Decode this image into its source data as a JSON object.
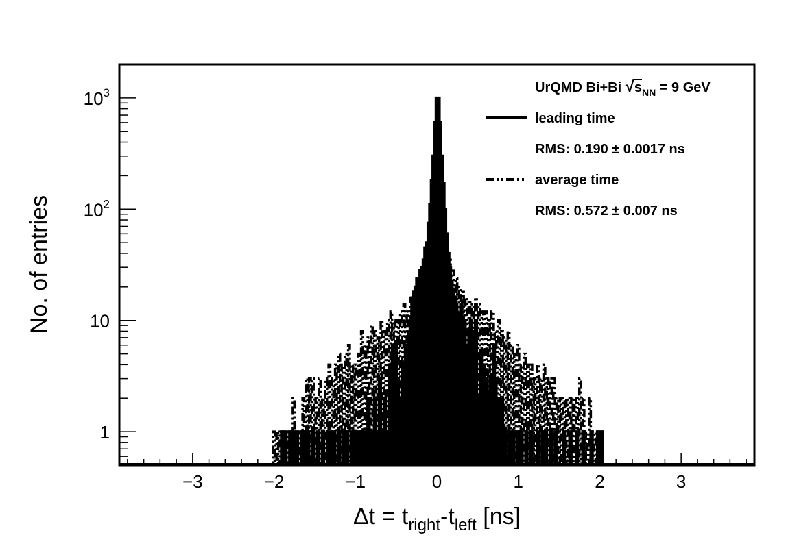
{
  "chart_data": {
    "type": "histogram",
    "xlabel": {
      "main": "Δt = t",
      "sub1": "right",
      "mid": "-t",
      "sub2": "left",
      "tail": " [ns]"
    },
    "ylabel": "No. of entries",
    "xlim": [
      -3.9,
      3.9
    ],
    "ylim": [
      0.5,
      2000
    ],
    "yscale": "log",
    "x_ticks": [
      -3,
      -2,
      -1,
      0,
      1,
      2,
      3
    ],
    "x_tick_labels": [
      "−3",
      "−2",
      "−1",
      "0",
      "1",
      "2",
      "3"
    ],
    "y_ticks": [
      1,
      10,
      100,
      1000
    ],
    "y_tick_labels": [
      {
        "base": "1",
        "exp": ""
      },
      {
        "base": "10",
        "exp": ""
      },
      {
        "base": "10",
        "exp": "2"
      },
      {
        "base": "10",
        "exp": "3"
      }
    ],
    "legend_placement": "top-right",
    "legend": {
      "title": {
        "pre": "UrQMD Bi+Bi  ",
        "sqrt_sym": "√",
        "s": "s",
        "s_sub": "NN",
        "post": " = 9 GeV"
      },
      "entries": [
        {
          "label": "leading time",
          "style": "solid",
          "rms": "RMS: 0.190  ±  0.0017 ns"
        },
        {
          "label": "average time",
          "style": "dash-dot",
          "rms": "RMS: 0.572  ±  0.007 ns"
        }
      ]
    },
    "bin_width": 0.02,
    "series": [
      {
        "name": "leading time",
        "style": "solid",
        "points": [
          [
            -1.9,
            1
          ],
          [
            -1.86,
            1
          ],
          [
            -1.8,
            1
          ],
          [
            -1.76,
            1
          ],
          [
            -1.72,
            1
          ],
          [
            -1.66,
            1
          ],
          [
            -1.62,
            1
          ],
          [
            -1.58,
            1
          ],
          [
            -1.52,
            1
          ],
          [
            -1.46,
            1
          ],
          [
            -1.4,
            1
          ],
          [
            -1.34,
            1
          ],
          [
            -1.3,
            1
          ],
          [
            -1.26,
            1
          ],
          [
            -1.2,
            1
          ],
          [
            -1.14,
            1
          ],
          [
            -1.1,
            1
          ],
          [
            -1.04,
            1
          ],
          [
            -1.0,
            1
          ],
          [
            -0.96,
            1
          ],
          [
            -0.92,
            1
          ],
          [
            -0.88,
            1
          ],
          [
            -0.84,
            2
          ],
          [
            -0.8,
            1
          ],
          [
            -0.76,
            2
          ],
          [
            -0.72,
            1
          ],
          [
            -0.7,
            3
          ],
          [
            -0.66,
            1
          ],
          [
            -0.64,
            2
          ],
          [
            -0.6,
            1
          ],
          [
            -0.58,
            4
          ],
          [
            -0.56,
            3
          ],
          [
            -0.54,
            6
          ],
          [
            -0.52,
            5
          ],
          [
            -0.5,
            6
          ],
          [
            -0.48,
            3
          ],
          [
            -0.46,
            2
          ],
          [
            -0.44,
            2
          ],
          [
            -0.42,
            4
          ],
          [
            -0.4,
            3
          ],
          [
            -0.38,
            6
          ],
          [
            -0.36,
            3
          ],
          [
            -0.34,
            8
          ],
          [
            -0.32,
            10
          ],
          [
            -0.3,
            16
          ],
          [
            -0.28,
            18
          ],
          [
            -0.26,
            20
          ],
          [
            -0.24,
            24
          ],
          [
            -0.22,
            22
          ],
          [
            -0.2,
            28
          ],
          [
            -0.18,
            30
          ],
          [
            -0.16,
            35
          ],
          [
            -0.14,
            45
          ],
          [
            -0.12,
            50
          ],
          [
            -0.1,
            75
          ],
          [
            -0.08,
            110
          ],
          [
            -0.06,
            180
          ],
          [
            -0.04,
            300
          ],
          [
            -0.02,
            600
          ],
          [
            0.0,
            1000
          ],
          [
            0.02,
            1000
          ],
          [
            0.04,
            600
          ],
          [
            0.06,
            300
          ],
          [
            0.08,
            170
          ],
          [
            0.1,
            100
          ],
          [
            0.12,
            60
          ],
          [
            0.14,
            40
          ],
          [
            0.16,
            30
          ],
          [
            0.18,
            22
          ],
          [
            0.2,
            18
          ],
          [
            0.22,
            16
          ],
          [
            0.24,
            12
          ],
          [
            0.26,
            10
          ],
          [
            0.28,
            10
          ],
          [
            0.3,
            14
          ],
          [
            0.32,
            8
          ],
          [
            0.34,
            10
          ],
          [
            0.36,
            6
          ],
          [
            0.38,
            5
          ],
          [
            0.4,
            8
          ],
          [
            0.42,
            10
          ],
          [
            0.44,
            8
          ],
          [
            0.46,
            6
          ],
          [
            0.48,
            10
          ],
          [
            0.5,
            2
          ],
          [
            0.52,
            2
          ],
          [
            0.54,
            5
          ],
          [
            0.56,
            2
          ],
          [
            0.58,
            4
          ],
          [
            0.6,
            3
          ],
          [
            0.62,
            1
          ],
          [
            0.64,
            2
          ],
          [
            0.66,
            3
          ],
          [
            0.68,
            2
          ],
          [
            0.7,
            6
          ],
          [
            0.72,
            3
          ],
          [
            0.74,
            1
          ],
          [
            0.76,
            2
          ],
          [
            0.78,
            1
          ],
          [
            0.8,
            2
          ],
          [
            0.84,
            1
          ],
          [
            0.9,
            1
          ],
          [
            0.94,
            1
          ],
          [
            1.0,
            1
          ],
          [
            1.04,
            1
          ],
          [
            1.1,
            1
          ],
          [
            1.16,
            1
          ],
          [
            1.24,
            1
          ],
          [
            1.3,
            1
          ],
          [
            1.34,
            1
          ],
          [
            1.4,
            1
          ],
          [
            1.46,
            1
          ],
          [
            1.56,
            1
          ],
          [
            1.64,
            1
          ],
          [
            1.72,
            1
          ],
          [
            1.8,
            1
          ],
          [
            1.9,
            1
          ],
          [
            1.98,
            1
          ],
          [
            2.02,
            1
          ]
        ]
      },
      {
        "name": "average time",
        "style": "dash-dot",
        "points": [
          [
            -2.0,
            1
          ],
          [
            -1.96,
            1
          ],
          [
            -1.92,
            1
          ],
          [
            -1.88,
            1
          ],
          [
            -1.84,
            1
          ],
          [
            -1.8,
            1
          ],
          [
            -1.76,
            2
          ],
          [
            -1.72,
            1
          ],
          [
            -1.68,
            1
          ],
          [
            -1.64,
            2
          ],
          [
            -1.6,
            3
          ],
          [
            -1.56,
            3
          ],
          [
            -1.52,
            3
          ],
          [
            -1.48,
            2
          ],
          [
            -1.44,
            3
          ],
          [
            -1.4,
            2
          ],
          [
            -1.36,
            3
          ],
          [
            -1.32,
            4
          ],
          [
            -1.28,
            3
          ],
          [
            -1.24,
            4
          ],
          [
            -1.2,
            5
          ],
          [
            -1.16,
            4
          ],
          [
            -1.12,
            5
          ],
          [
            -1.08,
            6
          ],
          [
            -1.04,
            4
          ],
          [
            -1.0,
            4
          ],
          [
            -0.96,
            5
          ],
          [
            -0.92,
            8
          ],
          [
            -0.88,
            6
          ],
          [
            -0.84,
            7
          ],
          [
            -0.8,
            9
          ],
          [
            -0.76,
            8
          ],
          [
            -0.72,
            7
          ],
          [
            -0.68,
            10
          ],
          [
            -0.64,
            8
          ],
          [
            -0.6,
            10
          ],
          [
            -0.56,
            12
          ],
          [
            -0.52,
            10
          ],
          [
            -0.48,
            10
          ],
          [
            -0.44,
            12
          ],
          [
            -0.4,
            14
          ],
          [
            -0.36,
            12
          ],
          [
            -0.32,
            16
          ],
          [
            -0.28,
            18
          ],
          [
            -0.24,
            22
          ],
          [
            -0.2,
            30
          ],
          [
            -0.16,
            33
          ],
          [
            -0.12,
            40
          ],
          [
            -0.08,
            45
          ],
          [
            -0.04,
            60
          ],
          [
            0.0,
            70
          ],
          [
            0.04,
            80
          ],
          [
            0.08,
            65
          ],
          [
            0.12,
            45
          ],
          [
            0.16,
            35
          ],
          [
            0.2,
            28
          ],
          [
            0.24,
            24
          ],
          [
            0.28,
            20
          ],
          [
            0.32,
            18
          ],
          [
            0.36,
            16
          ],
          [
            0.4,
            15
          ],
          [
            0.44,
            14
          ],
          [
            0.48,
            16
          ],
          [
            0.52,
            14
          ],
          [
            0.56,
            12
          ],
          [
            0.6,
            12
          ],
          [
            0.64,
            10
          ],
          [
            0.68,
            12
          ],
          [
            0.72,
            8
          ],
          [
            0.76,
            10
          ],
          [
            0.8,
            8
          ],
          [
            0.84,
            7
          ],
          [
            0.88,
            8
          ],
          [
            0.92,
            6
          ],
          [
            0.96,
            5
          ],
          [
            1.0,
            6
          ],
          [
            1.04,
            4
          ],
          [
            1.08,
            5
          ],
          [
            1.12,
            4
          ],
          [
            1.16,
            4
          ],
          [
            1.2,
            3
          ],
          [
            1.24,
            4
          ],
          [
            1.28,
            3
          ],
          [
            1.32,
            4
          ],
          [
            1.36,
            3
          ],
          [
            1.4,
            3
          ],
          [
            1.44,
            3
          ],
          [
            1.48,
            2
          ],
          [
            1.52,
            2
          ],
          [
            1.56,
            2
          ],
          [
            1.6,
            2
          ],
          [
            1.64,
            2
          ],
          [
            1.68,
            2
          ],
          [
            1.72,
            2
          ],
          [
            1.76,
            3
          ],
          [
            1.8,
            2
          ],
          [
            1.84,
            1
          ],
          [
            1.88,
            2
          ],
          [
            1.92,
            1
          ],
          [
            1.96,
            1
          ],
          [
            2.0,
            1
          ]
        ]
      }
    ]
  }
}
